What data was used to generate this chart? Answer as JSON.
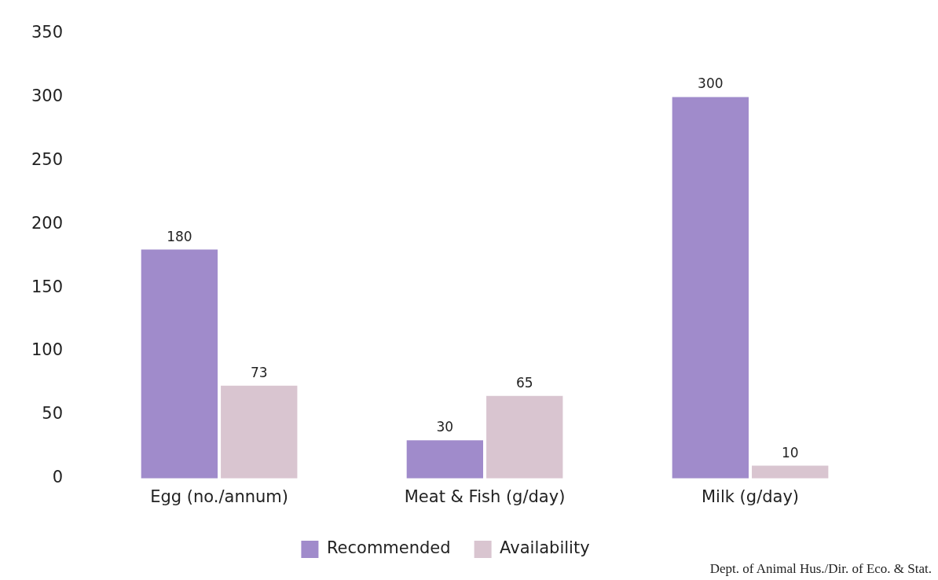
{
  "chart_data": {
    "type": "bar",
    "categories": [
      "Egg (no./annum)",
      "Meat & Fish (g/day)",
      "Milk (g/day)"
    ],
    "series": [
      {
        "name": "Recommended",
        "color": "#a08bcb",
        "values": [
          180,
          30,
          300
        ]
      },
      {
        "name": "Availability",
        "color": "#d9c5d0",
        "values": [
          73,
          65,
          10
        ]
      }
    ],
    "ylim": [
      0,
      350
    ],
    "yticks": [
      0,
      50,
      100,
      150,
      200,
      250,
      300,
      350
    ],
    "grid": false,
    "legend": "bottom",
    "data_labels": true,
    "annotations": [
      "Dept. of Animal Hus./Dir. of Eco. & Stat."
    ]
  }
}
